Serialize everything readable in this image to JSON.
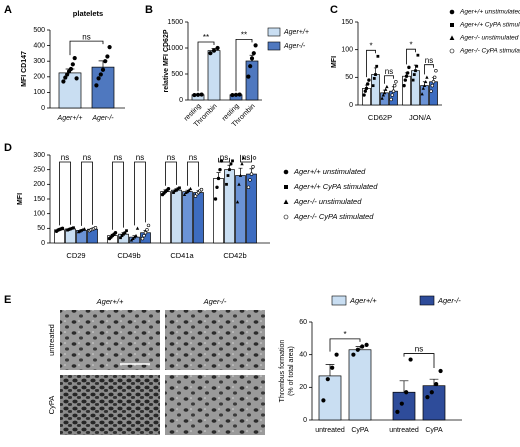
{
  "chart_data": [
    {
      "type": "bar",
      "panel": "A",
      "title": "platelets",
      "ylabel": "MFI CD147",
      "categories": [
        "Ager+/+",
        "Ager-/-"
      ],
      "values": [
        225,
        262
      ],
      "errors": [
        25,
        40
      ],
      "colors": [
        "#c9def2",
        "#4f78bf"
      ],
      "points": [
        [
          170,
          195,
          215,
          235,
          250,
          280,
          320,
          190
        ],
        [
          145,
          190,
          215,
          245,
          300,
          330,
          390
        ]
      ],
      "significance": [
        "ns"
      ],
      "ylim": [
        0,
        500
      ],
      "yticks": [
        0,
        100,
        200,
        300,
        400,
        500
      ]
    },
    {
      "type": "bar",
      "panel": "B",
      "ylabel": "relative MFI CD62P",
      "categories": [
        "resting",
        "Thrombin"
      ],
      "series": [
        {
          "name": "Ager+/+",
          "color": "#c9def2",
          "values": [
            100,
            950
          ],
          "errors": [
            10,
            40
          ],
          "points": [
            [
              95,
              100,
              105
            ],
            [
              900,
              950,
              1000
            ]
          ]
        },
        {
          "name": "Ager-/-",
          "color": "#4f78bf",
          "values": [
            100,
            750
          ],
          "errors": [
            10,
            110
          ],
          "points": [
            [
              95,
              100,
              105
            ],
            [
              450,
              650,
              800,
              900,
              1050
            ]
          ]
        }
      ],
      "significance": [
        "**",
        "**"
      ],
      "ylim": [
        0,
        1500
      ],
      "yticks": [
        0,
        500,
        1000,
        1500
      ]
    },
    {
      "type": "bar",
      "panel": "C",
      "ylabel": "MFI",
      "categories": [
        "CD62P",
        "JON/A"
      ],
      "series": [
        {
          "name": "Ager+/+ unstimulated",
          "color": "#ffffff",
          "marker": "circle",
          "values": [
            30,
            52
          ],
          "errors": [
            6,
            6
          ],
          "points": [
            [
              18,
              25,
              30,
              38,
              45
            ],
            [
              35,
              45,
              52,
              58,
              68
            ]
          ]
        },
        {
          "name": "Ager+/+ CyPA stimulated",
          "color": "#c9def2",
          "marker": "square",
          "values": [
            55,
            62
          ],
          "errors": [
            12,
            10
          ],
          "points": [
            [
              35,
              48,
              55,
              70,
              88
            ],
            [
              45,
              55,
              62,
              70,
              90
            ]
          ]
        },
        {
          "name": "Ager-/- unstimulated",
          "color": "#6b93d6",
          "marker": "triangle",
          "values": [
            22,
            35
          ],
          "errors": [
            5,
            7
          ],
          "points": [
            [
              12,
              18,
              22,
              28,
              33
            ],
            [
              20,
              30,
              35,
              42,
              50
            ]
          ]
        },
        {
          "name": "Ager-/- CyPA stimulated",
          "color": "#3d6cc0",
          "marker": "open-circle",
          "values": [
            25,
            42
          ],
          "errors": [
            8,
            8
          ],
          "points": [
            [
              10,
              18,
              25,
              35,
              42
            ],
            [
              25,
              35,
              42,
              50,
              62
            ]
          ]
        }
      ],
      "significance": [
        "*",
        "ns",
        "*",
        "ns"
      ],
      "ylim": [
        0,
        150
      ],
      "yticks": [
        0,
        50,
        100,
        150
      ]
    },
    {
      "type": "bar",
      "panel": "D",
      "ylabel": "MFI",
      "categories": [
        "CD29",
        "CD49b",
        "CD41a",
        "CD42b"
      ],
      "series": [
        {
          "name": "Ager+/+ unstimulated",
          "color": "#ffffff",
          "marker": "circle",
          "values": [
            45,
            25,
            175,
            220
          ],
          "errors": [
            3,
            5,
            6,
            20
          ],
          "points": [
            [
              40,
              44,
              46,
              48,
              50
            ],
            [
              15,
              20,
              25,
              30,
              35
            ],
            [
              165,
              170,
              175,
              180,
              185
            ],
            [
              150,
              190,
              220,
              250,
              280
            ]
          ]
        },
        {
          "name": "Ager+/+ CyPA stimulated",
          "color": "#c9def2",
          "marker": "square",
          "values": [
            48,
            30,
            180,
            250
          ],
          "errors": [
            3,
            6,
            5,
            15
          ],
          "points": [
            [
              44,
              46,
              48,
              50,
              52
            ],
            [
              18,
              25,
              30,
              35,
              42
            ],
            [
              172,
              178,
              180,
              185,
              188
            ],
            [
              200,
              230,
              250,
              270,
              280
            ]
          ]
        },
        {
          "name": "Ager-/- unstimulated",
          "color": "#6b93d6",
          "marker": "triangle",
          "values": [
            43,
            20,
            175,
            230
          ],
          "errors": [
            3,
            5,
            5,
            25
          ],
          "points": [
            [
              38,
              40,
              43,
              46,
              48
            ],
            [
              10,
              15,
              20,
              25,
              50
            ],
            [
              165,
              172,
              175,
              180,
              185
            ],
            [
              140,
              200,
              230,
              270,
              290
            ]
          ]
        },
        {
          "name": "Ager-/- CyPA stimulated",
          "color": "#3d6cc0",
          "marker": "open-circle",
          "values": [
            47,
            35,
            172,
            235
          ],
          "errors": [
            3,
            8,
            6,
            18
          ],
          "points": [
            [
              42,
              45,
              47,
              49,
              52
            ],
            [
              15,
              25,
              35,
              45,
              60
            ],
            [
              160,
              168,
              172,
              178,
              182
            ],
            [
              190,
              215,
              235,
              260,
              290
            ]
          ]
        }
      ],
      "significance": [
        "ns",
        "ns",
        "ns",
        "ns",
        "ns",
        "ns",
        "ns",
        "ns"
      ],
      "ylim": [
        0,
        300
      ],
      "yticks": [
        0,
        50,
        100,
        150,
        200,
        250,
        300
      ]
    },
    {
      "type": "bar",
      "panel": "E",
      "image_columns": [
        "Ager+/+",
        "Ager-/-"
      ],
      "image_rows": [
        "untreated",
        "CyPA"
      ],
      "ylabel": [
        "Thrombus formation",
        "(% of total area)"
      ],
      "categories": [
        "untreated",
        "CyPA"
      ],
      "series": [
        {
          "name": "Ager+/+",
          "color": "#c9def2",
          "values": [
            27,
            43
          ],
          "errors": [
            7,
            2
          ],
          "points": [
            [
              12,
              25,
              32,
              40
            ],
            [
              40,
              43,
              45,
              46
            ]
          ]
        },
        {
          "name": "Ager-/-",
          "color": "#2e4c9a",
          "values": [
            17,
            21
          ],
          "errors": [
            7,
            4
          ],
          "points": [
            [
              5,
              10,
              17,
              37
            ],
            [
              14,
              17,
              22,
              30
            ]
          ]
        }
      ],
      "significance": [
        "*",
        "ns"
      ],
      "ylim": [
        0,
        60
      ],
      "yticks": [
        0,
        20,
        40,
        60
      ]
    }
  ]
}
